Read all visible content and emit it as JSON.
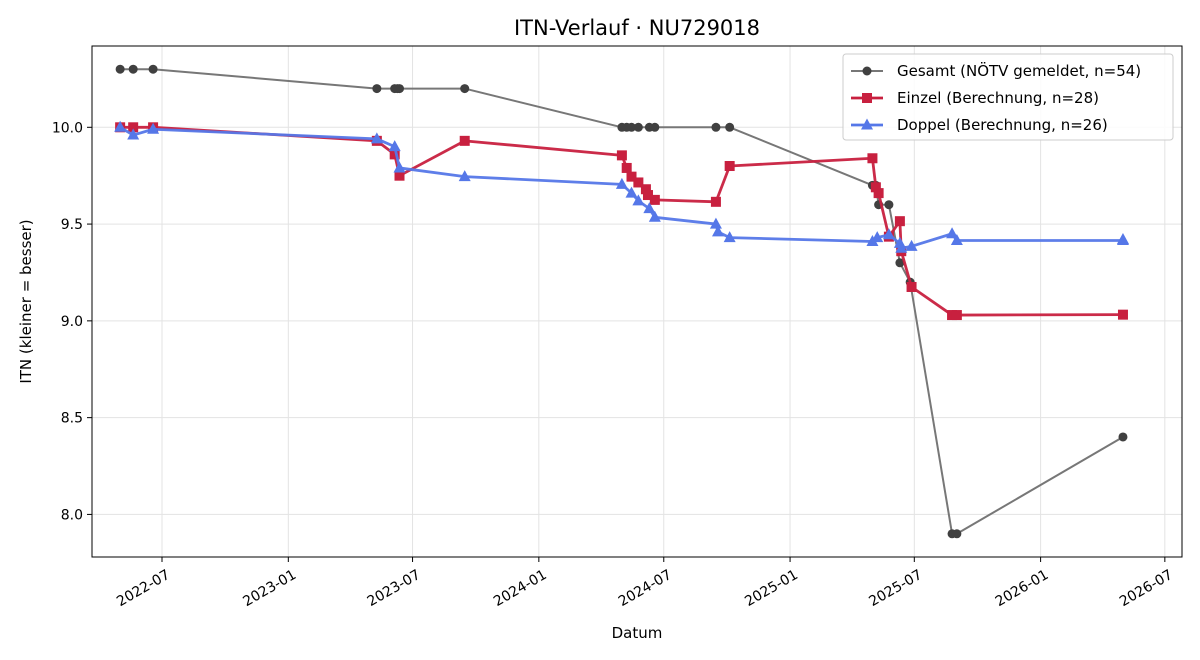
{
  "chart_data": {
    "type": "line",
    "title": "ITN-Verlauf · NU729018",
    "xlabel": "Datum",
    "ylabel": "ITN  (kleiner = besser)",
    "x_type": "date",
    "xlim": [
      "2022-03-21",
      "2026-07-26"
    ],
    "ylim": [
      7.78,
      10.42
    ],
    "x_ticks": [
      "2022-07-01",
      "2023-01-01",
      "2023-07-01",
      "2024-01-01",
      "2024-07-01",
      "2025-01-01",
      "2025-07-01",
      "2026-01-01",
      "2026-07-01"
    ],
    "x_tick_labels": [
      "2022-07",
      "2023-01",
      "2023-07",
      "2024-01",
      "2024-07",
      "2025-01",
      "2025-07",
      "2026-01",
      "2026-07"
    ],
    "y_ticks": [
      8.0,
      8.5,
      9.0,
      9.5,
      10.0
    ],
    "y_tick_labels": [
      "8.0",
      "8.5",
      "9.0",
      "9.5",
      "10.0"
    ],
    "grid": true,
    "legend_position": "top-right",
    "series": [
      {
        "name": "Gesamt (NÖTV gemeldet, n=54)",
        "color": "#777777",
        "marker_color": "#404040",
        "marker": "circle",
        "points": [
          [
            "2022-05-01",
            10.3
          ],
          [
            "2022-05-20",
            10.3
          ],
          [
            "2022-06-18",
            10.3
          ],
          [
            "2023-05-10",
            10.2
          ],
          [
            "2023-06-05",
            10.2
          ],
          [
            "2023-06-09",
            10.2
          ],
          [
            "2023-06-12",
            10.2
          ],
          [
            "2023-09-15",
            10.2
          ],
          [
            "2024-05-01",
            10.0
          ],
          [
            "2024-05-08",
            10.0
          ],
          [
            "2024-05-15",
            10.0
          ],
          [
            "2024-05-25",
            10.0
          ],
          [
            "2024-06-10",
            10.0
          ],
          [
            "2024-06-18",
            10.0
          ],
          [
            "2024-09-15",
            10.0
          ],
          [
            "2024-10-05",
            10.0
          ],
          [
            "2025-05-01",
            9.7
          ],
          [
            "2025-05-06",
            9.7
          ],
          [
            "2025-05-10",
            9.6
          ],
          [
            "2025-05-25",
            9.6
          ],
          [
            "2025-06-10",
            9.3
          ],
          [
            "2025-06-25",
            9.2
          ],
          [
            "2025-08-25",
            7.9
          ],
          [
            "2025-09-01",
            7.9
          ],
          [
            "2026-05-01",
            8.4
          ]
        ]
      },
      {
        "name": "Einzel (Berechnung, n=28)",
        "color": "#c8203f",
        "marker_color": "#c8203f",
        "marker": "square",
        "points": [
          [
            "2022-05-01",
            10.0
          ],
          [
            "2022-05-20",
            10.0
          ],
          [
            "2022-06-18",
            10.0
          ],
          [
            "2023-05-10",
            9.93
          ],
          [
            "2023-06-05",
            9.86
          ],
          [
            "2023-06-12",
            9.75
          ],
          [
            "2023-09-15",
            9.93
          ],
          [
            "2024-05-01",
            9.855
          ],
          [
            "2024-05-08",
            9.79
          ],
          [
            "2024-05-15",
            9.745
          ],
          [
            "2024-05-25",
            9.715
          ],
          [
            "2024-06-05",
            9.68
          ],
          [
            "2024-06-08",
            9.65
          ],
          [
            "2024-06-18",
            9.625
          ],
          [
            "2024-09-15",
            9.615
          ],
          [
            "2024-10-05",
            9.8
          ],
          [
            "2025-05-01",
            9.84
          ],
          [
            "2025-05-06",
            9.69
          ],
          [
            "2025-05-10",
            9.66
          ],
          [
            "2025-05-25",
            9.435
          ],
          [
            "2025-06-10",
            9.515
          ],
          [
            "2025-06-12",
            9.36
          ],
          [
            "2025-06-27",
            9.175
          ],
          [
            "2025-08-25",
            9.03
          ],
          [
            "2025-09-01",
            9.03
          ],
          [
            "2026-05-01",
            9.032
          ]
        ]
      },
      {
        "name": "Doppel (Berechnung, n=26)",
        "color": "#5577e8",
        "marker_color": "#5577e8",
        "marker": "triangle",
        "points": [
          [
            "2022-05-01",
            10.0
          ],
          [
            "2022-05-20",
            9.96
          ],
          [
            "2022-06-18",
            9.99
          ],
          [
            "2023-05-10",
            9.94
          ],
          [
            "2023-06-05",
            9.9
          ],
          [
            "2023-06-12",
            9.79
          ],
          [
            "2023-09-15",
            9.745
          ],
          [
            "2024-05-01",
            9.705
          ],
          [
            "2024-05-15",
            9.66
          ],
          [
            "2024-05-25",
            9.62
          ],
          [
            "2024-06-10",
            9.58
          ],
          [
            "2024-06-18",
            9.535
          ],
          [
            "2024-09-15",
            9.5
          ],
          [
            "2024-09-18",
            9.46
          ],
          [
            "2024-10-05",
            9.43
          ],
          [
            "2025-05-01",
            9.41
          ],
          [
            "2025-05-08",
            9.43
          ],
          [
            "2025-05-25",
            9.445
          ],
          [
            "2025-06-10",
            9.4
          ],
          [
            "2025-06-12",
            9.375
          ],
          [
            "2025-06-27",
            9.385
          ],
          [
            "2025-08-25",
            9.45
          ],
          [
            "2025-09-01",
            9.415
          ],
          [
            "2026-05-01",
            9.415
          ],
          [
            "2026-05-01",
            9.42
          ]
        ]
      }
    ]
  }
}
